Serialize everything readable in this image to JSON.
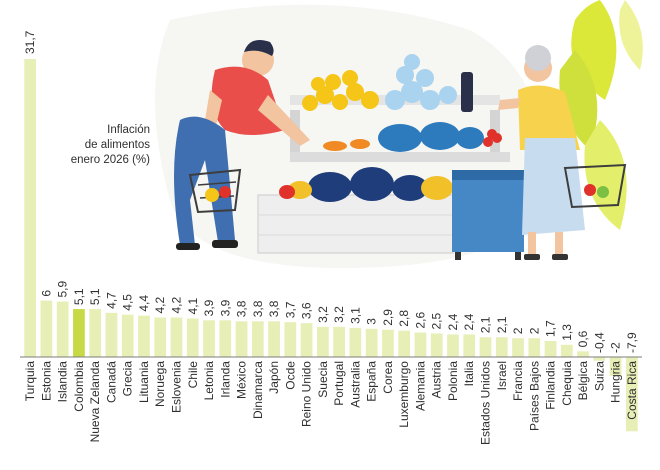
{
  "chart_data": {
    "type": "bar",
    "title": "Inflación\nde alimentos\nenero 2026 (%)",
    "categories": [
      "Turquia",
      "Estonia",
      "Islandia",
      "Colombia",
      "Nueva Zelanda",
      "Canadá",
      "Grecia",
      "Lituania",
      "Noruega",
      "Eslovenia",
      "Chile",
      "Letonia",
      "Irlanda",
      "México",
      "Dinamarca",
      "Japón",
      "Ocde",
      "Reino Unido",
      "Suecia",
      "Portugal",
      "Australia",
      "España",
      "Corea",
      "Luxemburgo",
      "Alemania",
      "Austria",
      "Polonia",
      "Italia",
      "Estados Unidos",
      "Israel",
      "Francia",
      "Países Bajos",
      "Finlandia",
      "Chequia",
      "Bélgica",
      "Suiza",
      "Hungria",
      "Costa Rica"
    ],
    "values": [
      31.7,
      6,
      5.9,
      5.1,
      5.1,
      4.7,
      4.5,
      4.4,
      4.2,
      4.2,
      4.1,
      3.9,
      3.9,
      3.8,
      3.8,
      3.8,
      3.7,
      3.6,
      3.2,
      3.2,
      3.1,
      3,
      2.9,
      2.8,
      2.6,
      2.5,
      2.4,
      2.4,
      2.1,
      2.1,
      2,
      2,
      1.7,
      1.3,
      0.6,
      -0.4,
      -2,
      -7.9
    ],
    "value_labels": [
      "31,7",
      "6",
      "5,9",
      "5,1",
      "5,1",
      "4,7",
      "4,5",
      "4,4",
      "4,2",
      "4,2",
      "4,1",
      "3,9",
      "3,9",
      "3,8",
      "3,8",
      "3,8",
      "3,7",
      "3,6",
      "3,2",
      "3,2",
      "3,1",
      "3",
      "2,9",
      "2,8",
      "2,6",
      "2,5",
      "2,4",
      "2,4",
      "2,1",
      "2,1",
      "2",
      "2",
      "1,7",
      "1,3",
      "0,6",
      "-0,4",
      "-2",
      "-7,9"
    ],
    "highlight_category": "Colombia",
    "colors": {
      "bar": "#e7efb6",
      "highlight": "#c7da45",
      "baseline": "#7c7c7c",
      "text": "#2f2f2f"
    },
    "grid": false
  },
  "illustration": {
    "description_icons": [
      "man-shopper-icon",
      "woman-shopper-icon",
      "vegetable-stall-icon",
      "shopping-basket-icon",
      "leaf-decoration-icon"
    ]
  }
}
